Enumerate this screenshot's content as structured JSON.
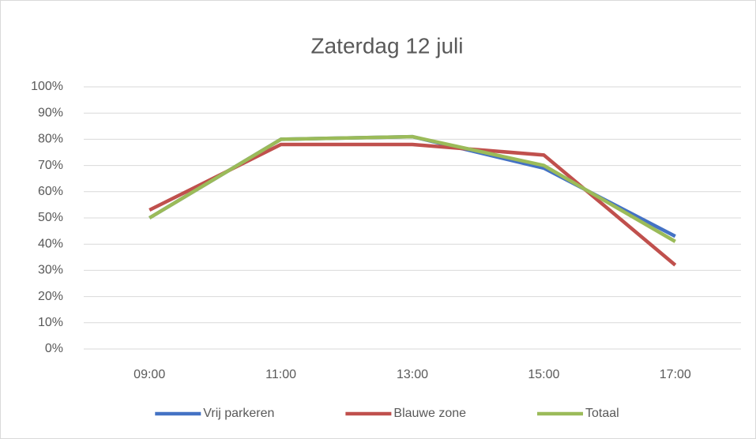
{
  "chart_data": {
    "type": "line",
    "title": "Zaterdag 12 juli",
    "categories": [
      "09:00",
      "11:00",
      "13:00",
      "15:00",
      "17:00"
    ],
    "series": [
      {
        "name": "Vrij parkeren",
        "color": "#4472c4",
        "values": [
          50,
          80,
          81,
          69,
          43
        ]
      },
      {
        "name": "Blauwe zone",
        "color": "#c0504d",
        "values": [
          53,
          78,
          78,
          74,
          32
        ]
      },
      {
        "name": "Totaal",
        "color": "#9bbb59",
        "values": [
          50,
          80,
          81,
          70,
          41
        ]
      }
    ],
    "ylim": [
      0,
      100
    ],
    "yticks": [
      {
        "value": 0,
        "label": "0%"
      },
      {
        "value": 10,
        "label": "10%"
      },
      {
        "value": 20,
        "label": "20%"
      },
      {
        "value": 30,
        "label": "30%"
      },
      {
        "value": 40,
        "label": "40%"
      },
      {
        "value": 50,
        "label": "50%"
      },
      {
        "value": 60,
        "label": "60%"
      },
      {
        "value": 70,
        "label": "70%"
      },
      {
        "value": 80,
        "label": "80%"
      },
      {
        "value": 90,
        "label": "90%"
      },
      {
        "value": 100,
        "label": "100%"
      }
    ],
    "grid": true,
    "legend": "bottom"
  }
}
